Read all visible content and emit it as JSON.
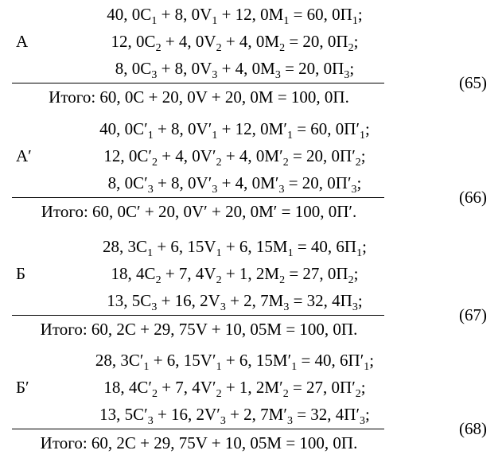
{
  "blocks": [
    {
      "label": "А",
      "number": "(65)",
      "lines": [
        [
          "40, 0C",
          "1",
          " + 8, 0V",
          "1",
          " + 12, 0M",
          "1",
          " = 60, 0П",
          "1",
          ";"
        ],
        [
          "12, 0C",
          "2",
          " + 4, 0V",
          "2",
          " + 4, 0M",
          "2",
          " = 20, 0П",
          "2",
          ";"
        ],
        [
          "8, 0C",
          "3",
          " + 8, 0V",
          "3",
          " + 4, 0M",
          "3",
          " = 20, 0П",
          "3",
          ";"
        ]
      ],
      "total": "Итого: 60, 0C + 20, 0V + 20, 0M = 100, 0П."
    },
    {
      "label": "А′",
      "number": "(66)",
      "lines": [
        [
          "40, 0C′",
          "1",
          " + 8, 0V′",
          "1",
          " + 12, 0M′",
          "1",
          " = 60, 0П′",
          "1",
          ";"
        ],
        [
          "12, 0C′",
          "2",
          " + 4, 0V′",
          "2",
          " + 4, 0M′",
          "2",
          " = 20, 0П′",
          "2",
          ";"
        ],
        [
          "8, 0C′",
          "3",
          " + 8, 0V′",
          "3",
          " + 4, 0M′",
          "3",
          " = 20, 0П′",
          "3",
          ";"
        ]
      ],
      "total": "Итого: 60, 0C′ + 20, 0V′ + 20, 0M′ = 100, 0П′."
    },
    {
      "label": "Б",
      "number": "(67)",
      "lines": [
        [
          "28, 3C",
          "1",
          " + 6, 15V",
          "1",
          " + 6, 15M",
          "1",
          " = 40, 6П",
          "1",
          ";"
        ],
        [
          "18, 4C",
          "2",
          " + 7, 4V",
          "2",
          " + 1, 2M",
          "2",
          " = 27, 0П",
          "2",
          ";"
        ],
        [
          "13, 5C",
          "3",
          " + 16, 2V",
          "3",
          " + 2, 7M",
          "3",
          " = 32, 4П",
          "3",
          ";"
        ]
      ],
      "total": "Итого: 60, 2C + 29, 75V + 10, 05M = 100, 0П."
    },
    {
      "label": "Б′",
      "number": "(68)",
      "lines": [
        [
          "28, 3C′",
          "1",
          " + 6, 15V′",
          "1",
          " + 6, 15M′",
          "1",
          " = 40, 6П′",
          "1",
          ";"
        ],
        [
          "18, 4C′",
          "2",
          " + 7, 4V′",
          "2",
          " + 1, 2M′",
          "2",
          " = 27, 0П′",
          "2",
          ";"
        ],
        [
          "13, 5C′",
          "3",
          " + 16, 2V′",
          "3",
          " + 2, 7M′",
          "3",
          " = 32, 4П′",
          "3",
          ";"
        ]
      ],
      "total": "Итого: 60, 2C + 29, 75V + 10, 05M = 100, 0П."
    }
  ]
}
